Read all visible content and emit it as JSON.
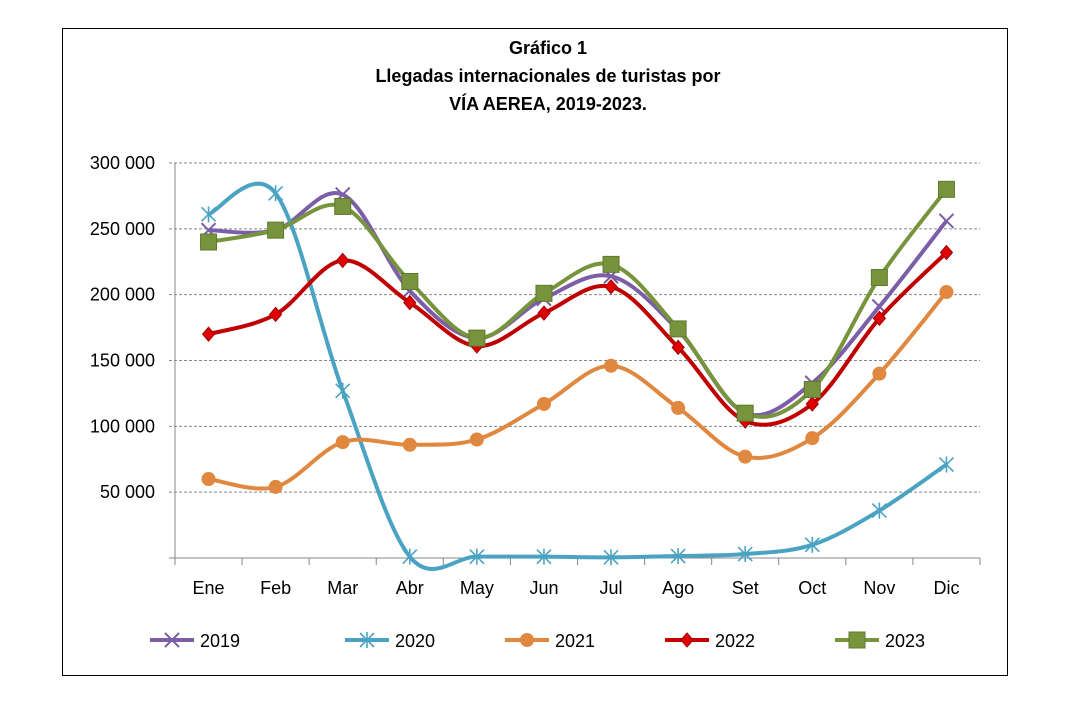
{
  "chart_data": {
    "type": "line",
    "title": [
      "Gráfico 1",
      "Llegadas internacionales de turistas por",
      "VÍA AEREA, 2019-2023."
    ],
    "xlabel": "",
    "ylabel": "",
    "categories": [
      "Ene",
      "Feb",
      "Mar",
      "Abr",
      "May",
      "Jun",
      "Jul",
      "Ago",
      "Set",
      "Oct",
      "Nov",
      "Dic"
    ],
    "ylim": [
      0,
      300000
    ],
    "yticks": [
      50000,
      100000,
      150000,
      200000,
      250000,
      300000
    ],
    "ytick_labels": [
      "50 000",
      "100 000",
      "150 000",
      "200 000",
      "250 000",
      "300 000"
    ],
    "grid": true,
    "smooth": true,
    "legend": "bottom",
    "series": [
      {
        "name": "2019",
        "color": "#7B5EA7",
        "marker": "x",
        "values": [
          249000,
          249000,
          276000,
          203000,
          167000,
          197000,
          214000,
          173000,
          110000,
          133000,
          191000,
          256000
        ]
      },
      {
        "name": "2020",
        "color": "#4BA3C3",
        "marker": "asterisk",
        "values": [
          261000,
          277000,
          127000,
          1000,
          1000,
          1000,
          500,
          1500,
          3000,
          10000,
          36000,
          71000
        ]
      },
      {
        "name": "2021",
        "color": "#E0883F",
        "marker": "circle",
        "values": [
          60000,
          54000,
          88000,
          86000,
          90000,
          117000,
          146000,
          114000,
          77000,
          91000,
          140000,
          202000
        ]
      },
      {
        "name": "2022",
        "color": "#C00000",
        "marker": "diamond",
        "values": [
          170000,
          185000,
          226000,
          194000,
          161000,
          186000,
          206000,
          160000,
          104000,
          117000,
          182000,
          232000
        ]
      },
      {
        "name": "2023",
        "color": "#77933C",
        "marker": "square",
        "values": [
          240000,
          249000,
          267000,
          210000,
          167000,
          201000,
          223000,
          174000,
          110000,
          128000,
          213000,
          280000
        ]
      }
    ]
  }
}
